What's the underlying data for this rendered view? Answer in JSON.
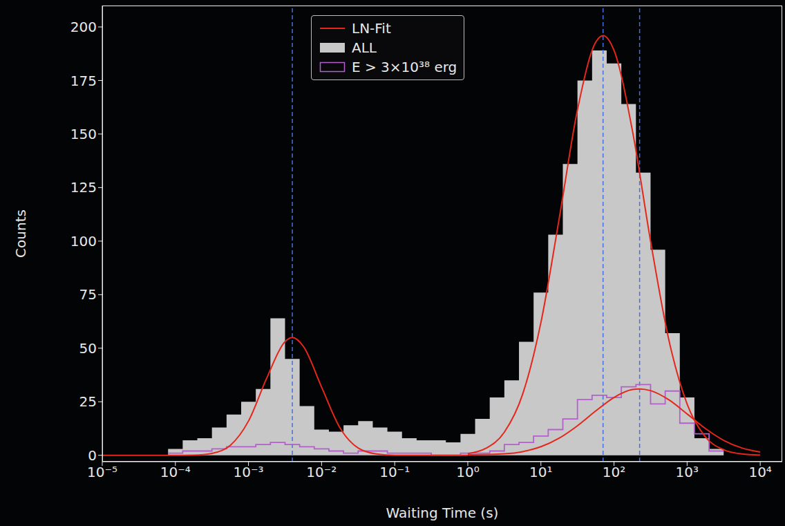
{
  "chart_data": {
    "type": "histogram",
    "xlabel": "Waiting Time (s)",
    "ylabel": "Counts",
    "log": "x",
    "legend": "top",
    "xlim": [
      1e-05,
      20000
    ],
    "ylim": [
      -3,
      210
    ],
    "xticks": [
      {
        "value": 1e-05,
        "label": "10⁻⁵"
      },
      {
        "value": 0.0001,
        "label": "10⁻⁴"
      },
      {
        "value": 0.001,
        "label": "10⁻³"
      },
      {
        "value": 0.01,
        "label": "10⁻²"
      },
      {
        "value": 0.1,
        "label": "10⁻¹"
      },
      {
        "value": 1,
        "label": "10⁰"
      },
      {
        "value": 10,
        "label": "10¹"
      },
      {
        "value": 100,
        "label": "10²"
      },
      {
        "value": 1000,
        "label": "10³"
      },
      {
        "value": 10000,
        "label": "10⁴"
      }
    ],
    "yticks": [
      0,
      25,
      50,
      75,
      100,
      125,
      150,
      175,
      200
    ],
    "bins": [
      7.943e-05,
      0.0001259,
      0.0001995,
      0.0003162,
      0.0005012,
      0.0007943,
      0.001259,
      0.001995,
      0.003162,
      0.005012,
      0.007943,
      0.01259,
      0.01995,
      0.03162,
      0.05012,
      0.07943,
      0.1259,
      0.1995,
      0.3162,
      0.5012,
      0.7943,
      1.259,
      1.995,
      3.162,
      5.012,
      7.943,
      12.59,
      19.95,
      31.62,
      50.12,
      79.43,
      125.9,
      199.5,
      316.2,
      501.2,
      794.3,
      1259,
      1995,
      3162
    ],
    "series": [
      {
        "name": "ALL",
        "type": "bar",
        "color": "#c8c8c8",
        "values": [
          3,
          7,
          8,
          13,
          19,
          25,
          31,
          64,
          45,
          23,
          12,
          11,
          14,
          16,
          13,
          11,
          8,
          7,
          7,
          6,
          10,
          17,
          27,
          35,
          53,
          76,
          103,
          136,
          175,
          189,
          183,
          164,
          132,
          96,
          57,
          27,
          8,
          3
        ]
      },
      {
        "name": "E > 3×10³⁸ erg",
        "type": "step",
        "color": "#b35fcc",
        "values": [
          1,
          2,
          2,
          3,
          4,
          4,
          5,
          6,
          5,
          4,
          3,
          2,
          1,
          2,
          2,
          1,
          1,
          1,
          0,
          0,
          1,
          1,
          2,
          5,
          6,
          9,
          12,
          17,
          26,
          28,
          27,
          32,
          33,
          24,
          30,
          15,
          10,
          2
        ]
      }
    ],
    "fit": {
      "name": "LN-Fit",
      "type": "line",
      "color": "#e5261b",
      "curves": [
        {
          "x": [
            1e-05,
            0.0001,
            0.0001778,
            0.0003162,
            0.0005623,
            0.001,
            0.001778,
            0.003162,
            0.003981,
            0.005623,
            0.01,
            0.01778,
            0.03162,
            0.05623,
            0.1,
            1
          ],
          "values": [
            0,
            0,
            0.1,
            0.9,
            4.6,
            16,
            36.1,
            53.1,
            55,
            50.9,
            31.8,
            12.9,
            3.4,
            0.6,
            0,
            0
          ]
        },
        {
          "x": [
            1,
            1.778,
            3.162,
            5.623,
            10,
            17.78,
            31.62,
            56.23,
            70.79,
            100,
            177.8,
            316.2,
            562.3,
            1000,
            1778,
            3162,
            5623,
            10000
          ],
          "values": [
            0.8,
            3.3,
            10.8,
            28.5,
            62,
            110.5,
            161.3,
            192.9,
            196,
            189.1,
            151.9,
            100,
            53.9,
            23.9,
            8.6,
            2.6,
            0.6,
            0.1
          ]
        },
        {
          "x": [
            1,
            3.162,
            5.623,
            10,
            17.78,
            31.62,
            56.23,
            100,
            177.8,
            223.9,
            316.2,
            562.3,
            1000,
            1778,
            3162,
            5623,
            10000
          ],
          "values": [
            0.2,
            0.7,
            1.7,
            4,
            8,
            13.8,
            20.7,
            27,
            30.7,
            31,
            30.2,
            25.9,
            19.3,
            12.5,
            7,
            3.4,
            1.5
          ]
        }
      ]
    },
    "vlines": {
      "color": "#4470e0",
      "line_style": "dashed",
      "x": [
        0.00398,
        70.8,
        224
      ]
    }
  }
}
